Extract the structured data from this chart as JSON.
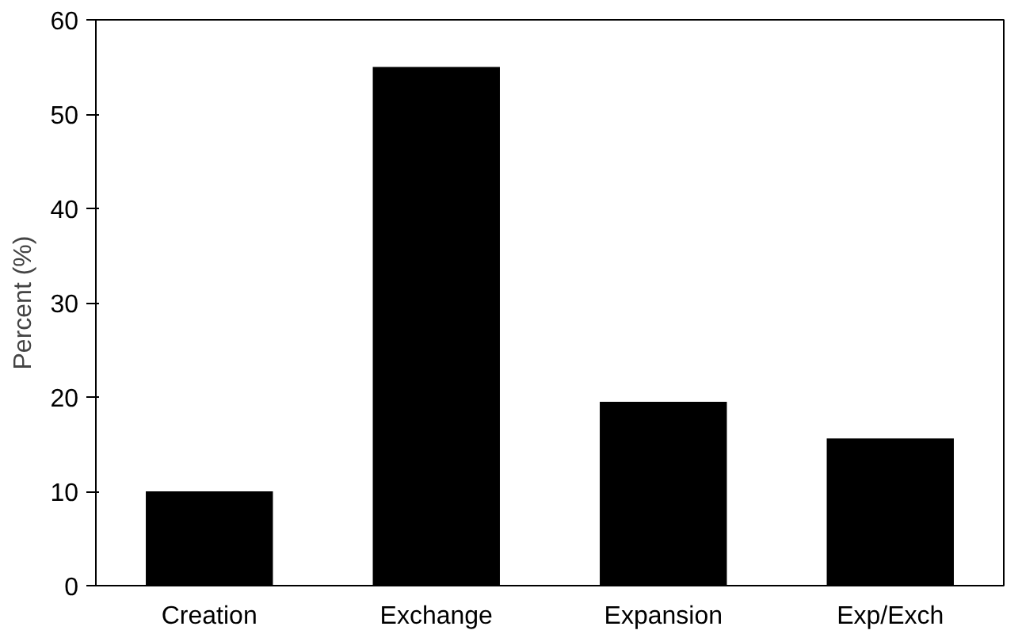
{
  "chart_data": {
    "type": "bar",
    "ylabel": "Percent (%)",
    "categories": [
      "Creation",
      "Exchange",
      "Expansion",
      "Exp/Exch"
    ],
    "values": [
      10,
      55,
      19.5,
      15.6
    ],
    "color": "#000000",
    "ylim": [
      0,
      60
    ],
    "yticks": [
      0,
      10,
      20,
      30,
      40,
      50,
      60
    ],
    "grid": false
  }
}
